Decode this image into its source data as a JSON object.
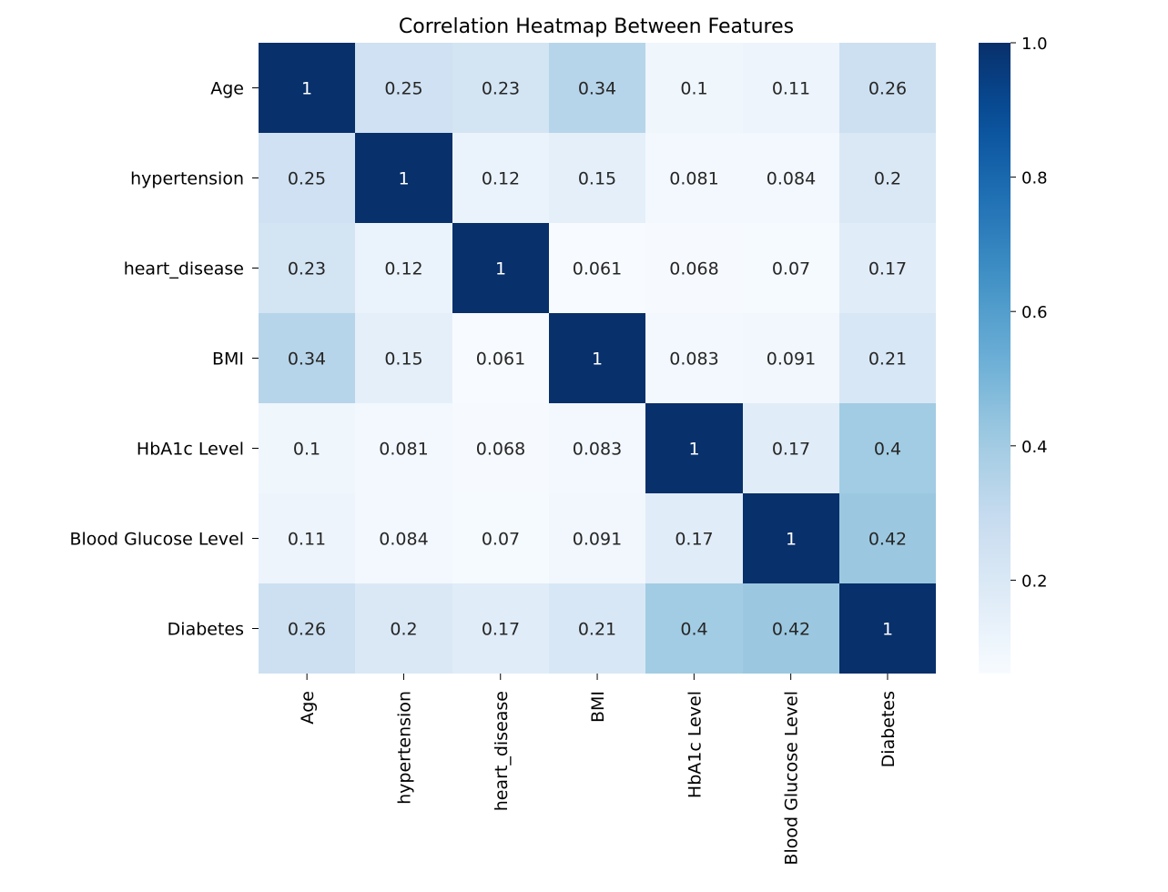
{
  "chart_data": {
    "type": "heatmap",
    "title": "Correlation Heatmap Between Features",
    "rows": [
      "Age",
      "hypertension",
      "heart_disease",
      "BMI",
      "HbA1c Level",
      "Blood Glucose Level",
      "Diabetes"
    ],
    "columns": [
      "Age",
      "hypertension",
      "heart_disease",
      "BMI",
      "HbA1c Level",
      "Blood Glucose Level",
      "Diabetes"
    ],
    "values": [
      [
        1,
        0.25,
        0.23,
        0.34,
        0.1,
        0.11,
        0.26
      ],
      [
        0.25,
        1,
        0.12,
        0.15,
        0.081,
        0.084,
        0.2
      ],
      [
        0.23,
        0.12,
        1,
        0.061,
        0.068,
        0.07,
        0.17
      ],
      [
        0.34,
        0.15,
        0.061,
        1,
        0.083,
        0.091,
        0.21
      ],
      [
        0.1,
        0.081,
        0.068,
        0.083,
        1,
        0.17,
        0.4
      ],
      [
        0.11,
        0.084,
        0.07,
        0.091,
        0.17,
        1,
        0.42
      ],
      [
        0.26,
        0.2,
        0.17,
        0.21,
        0.4,
        0.42,
        1
      ]
    ],
    "annotations": [
      [
        "1",
        "0.25",
        "0.23",
        "0.34",
        "0.1",
        "0.11",
        "0.26"
      ],
      [
        "0.25",
        "1",
        "0.12",
        "0.15",
        "0.081",
        "0.084",
        "0.2"
      ],
      [
        "0.23",
        "0.12",
        "1",
        "0.061",
        "0.068",
        "0.07",
        "0.17"
      ],
      [
        "0.34",
        "0.15",
        "0.061",
        "1",
        "0.083",
        "0.091",
        "0.21"
      ],
      [
        "0.1",
        "0.081",
        "0.068",
        "0.083",
        "1",
        "0.17",
        "0.4"
      ],
      [
        "0.11",
        "0.084",
        "0.07",
        "0.091",
        "0.17",
        "1",
        "0.42"
      ],
      [
        "0.26",
        "0.2",
        "0.17",
        "0.21",
        "0.4",
        "0.42",
        "1"
      ]
    ],
    "colormap": "Blues",
    "colorbar": {
      "range": [
        0.061,
        1.0
      ],
      "ticks": [
        0.2,
        0.4,
        0.6,
        0.8,
        1.0
      ],
      "tick_labels": [
        "0.2",
        "0.4",
        "0.6",
        "0.8",
        "1.0"
      ]
    }
  }
}
